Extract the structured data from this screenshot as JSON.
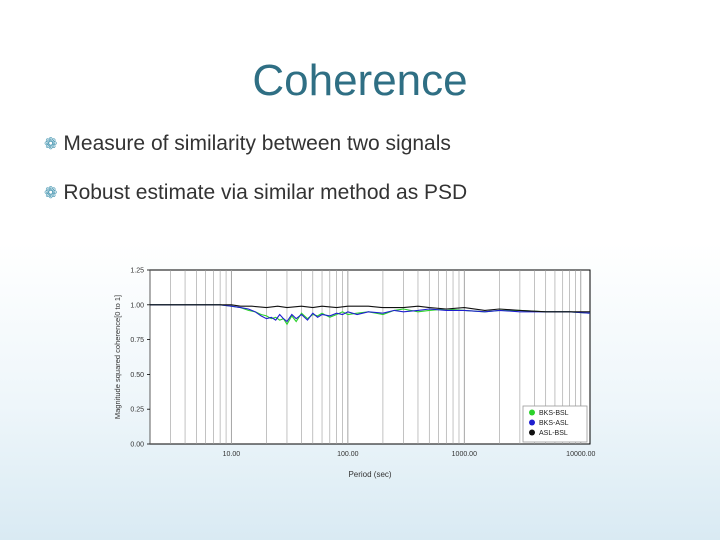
{
  "slide": {
    "title": "Coherence",
    "bullets": [
      "Measure of similarity between two signals",
      "Robust estimate via similar method as PSD"
    ]
  },
  "colors": {
    "title": "#2f6f84",
    "bullet_mark": "#4a98b3",
    "text": "#333333"
  },
  "icons": {
    "bullet": "bullet-swirl-icon"
  },
  "chart_data": {
    "type": "line",
    "xlabel": "Period (sec)",
    "ylabel": "Magnitude squared coherence[0 to 1]",
    "xscale": "log",
    "xlim": [
      2,
      12000
    ],
    "ylim": [
      0,
      1.25
    ],
    "xticks": [
      10,
      100,
      1000,
      10000
    ],
    "xtick_labels": [
      "10.00",
      "100.00",
      "1000.00",
      "10000.00"
    ],
    "yticks": [
      0,
      0.25,
      0.5,
      0.75,
      1.0,
      1.25
    ],
    "ytick_labels": [
      "0.00",
      "0.25",
      "0.50",
      "0.75",
      "1.00",
      "1.25"
    ],
    "grid": "vertical",
    "legend_position": "bottom-right",
    "series": [
      {
        "name": "BKS-BSL",
        "color": "#2bd12b",
        "x": [
          2,
          8,
          10,
          12,
          14,
          16,
          18,
          20,
          22,
          24,
          26,
          28,
          30,
          33,
          36,
          40,
          45,
          50,
          55,
          60,
          70,
          80,
          90,
          100,
          120,
          150,
          200,
          250,
          300,
          400,
          500,
          700,
          1000,
          1500,
          2000,
          3000,
          5000,
          8000,
          12000
        ],
        "y": [
          1.0,
          1.0,
          0.99,
          0.98,
          0.96,
          0.95,
          0.93,
          0.92,
          0.9,
          0.91,
          0.89,
          0.9,
          0.86,
          0.92,
          0.88,
          0.94,
          0.9,
          0.93,
          0.92,
          0.94,
          0.91,
          0.93,
          0.95,
          0.93,
          0.94,
          0.95,
          0.93,
          0.96,
          0.97,
          0.95,
          0.96,
          0.97,
          0.96,
          0.95,
          0.96,
          0.96,
          0.95,
          0.95,
          0.94
        ]
      },
      {
        "name": "BKS-ASL",
        "color": "#1f1fcf",
        "x": [
          2,
          8,
          10,
          12,
          14,
          16,
          18,
          20,
          22,
          24,
          26,
          28,
          30,
          33,
          36,
          40,
          45,
          50,
          55,
          60,
          70,
          80,
          90,
          100,
          120,
          150,
          200,
          250,
          300,
          400,
          500,
          700,
          1000,
          1500,
          2000,
          3000,
          5000,
          8000,
          12000
        ],
        "y": [
          1.0,
          1.0,
          0.99,
          0.98,
          0.97,
          0.95,
          0.92,
          0.9,
          0.91,
          0.89,
          0.93,
          0.9,
          0.88,
          0.93,
          0.9,
          0.93,
          0.89,
          0.94,
          0.91,
          0.93,
          0.92,
          0.94,
          0.93,
          0.95,
          0.93,
          0.95,
          0.94,
          0.96,
          0.95,
          0.96,
          0.97,
          0.96,
          0.96,
          0.95,
          0.96,
          0.95,
          0.95,
          0.95,
          0.94
        ]
      },
      {
        "name": "ASL-BSL",
        "color": "#111111",
        "x": [
          2,
          8,
          10,
          12,
          15,
          20,
          25,
          30,
          40,
          50,
          60,
          80,
          100,
          150,
          200,
          300,
          400,
          500,
          700,
          1000,
          1500,
          2000,
          3000,
          5000,
          8000,
          12000
        ],
        "y": [
          1.0,
          1.0,
          1.0,
          0.99,
          0.99,
          0.98,
          0.99,
          0.98,
          0.99,
          0.98,
          0.99,
          0.98,
          0.99,
          0.99,
          0.98,
          0.98,
          0.99,
          0.98,
          0.97,
          0.98,
          0.96,
          0.97,
          0.96,
          0.95,
          0.95,
          0.95
        ]
      }
    ]
  }
}
